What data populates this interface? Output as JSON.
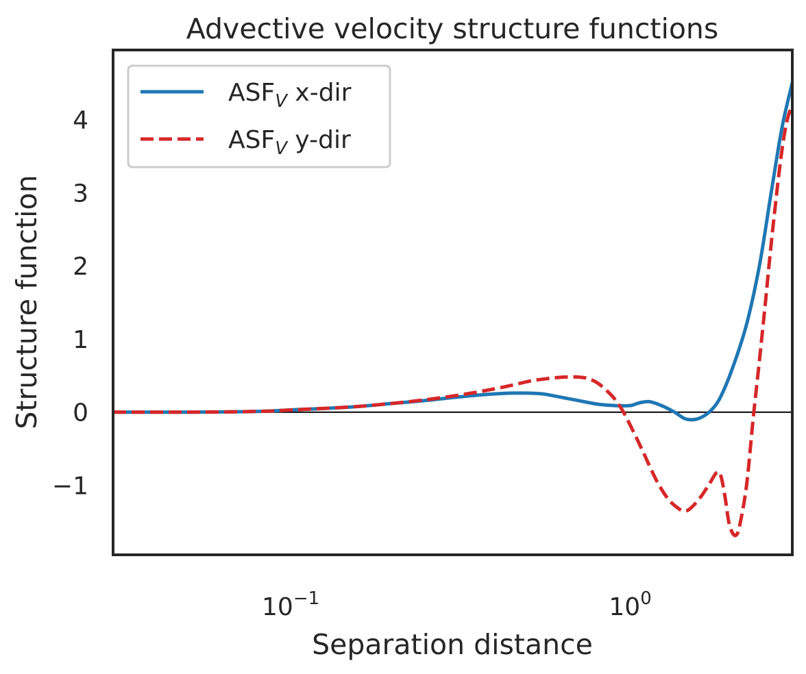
{
  "chart_data": {
    "type": "line",
    "title": "Advective velocity structure functions",
    "xlabel": "Separation distance",
    "ylabel": "Structure function",
    "xscale": "log",
    "xlim": [
      0.03,
      3.0
    ],
    "ylim": [
      -1.95,
      4.95
    ],
    "x_ticks": [
      {
        "value": 0.1,
        "base": "10",
        "exp": "−1"
      },
      {
        "value": 1.0,
        "base": "10",
        "exp": "0"
      }
    ],
    "y_ticks": [
      {
        "value": -1,
        "label": "−1"
      },
      {
        "value": 0,
        "label": "0"
      },
      {
        "value": 1,
        "label": "1"
      },
      {
        "value": 2,
        "label": "2"
      },
      {
        "value": 3,
        "label": "3"
      },
      {
        "value": 4,
        "label": "4"
      }
    ],
    "grid": false,
    "zero_line": true,
    "legend_position": "top-left",
    "series": [
      {
        "name": "ASF",
        "name_sub": "V",
        "name_suffix": " x-dir",
        "color": "#1f77b4",
        "style": "solid",
        "x": [
          0.03,
          0.05,
          0.08,
          0.1,
          0.15,
          0.2,
          0.25,
          0.3,
          0.35,
          0.4,
          0.45,
          0.5,
          0.55,
          0.6,
          0.7,
          0.8,
          0.9,
          1.0,
          1.05,
          1.1,
          1.15,
          1.25,
          1.35,
          1.45,
          1.55,
          1.65,
          1.75,
          1.85,
          2.0,
          2.2,
          2.4,
          2.6,
          2.8,
          3.0
        ],
        "y": [
          0.0,
          0.0,
          0.01,
          0.03,
          0.07,
          0.12,
          0.16,
          0.2,
          0.23,
          0.25,
          0.26,
          0.26,
          0.25,
          0.22,
          0.16,
          0.11,
          0.09,
          0.09,
          0.12,
          0.14,
          0.14,
          0.08,
          0.0,
          -0.09,
          -0.1,
          -0.05,
          0.05,
          0.22,
          0.6,
          1.2,
          2.0,
          3.0,
          3.9,
          4.5
        ]
      },
      {
        "name": "ASF",
        "name_sub": "V",
        "name_suffix": " y-dir",
        "color": "#d62728",
        "style": "dashed",
        "x": [
          0.03,
          0.05,
          0.08,
          0.1,
          0.15,
          0.2,
          0.25,
          0.3,
          0.35,
          0.4,
          0.45,
          0.5,
          0.55,
          0.6,
          0.65,
          0.7,
          0.75,
          0.8,
          0.85,
          0.9,
          0.95,
          1.0,
          1.05,
          1.1,
          1.2,
          1.3,
          1.4,
          1.45,
          1.5,
          1.6,
          1.7,
          1.8,
          1.85,
          1.9,
          1.95,
          2.0,
          2.05,
          2.1,
          2.2,
          2.3,
          2.4,
          2.5,
          2.6,
          2.7,
          2.8,
          2.9,
          3.0
        ],
        "y": [
          0.0,
          0.0,
          0.01,
          0.03,
          0.07,
          0.12,
          0.17,
          0.22,
          0.27,
          0.32,
          0.37,
          0.42,
          0.45,
          0.47,
          0.48,
          0.48,
          0.46,
          0.4,
          0.3,
          0.18,
          0.02,
          -0.18,
          -0.38,
          -0.58,
          -0.95,
          -1.2,
          -1.33,
          -1.35,
          -1.32,
          -1.18,
          -1.0,
          -0.82,
          -0.88,
          -1.15,
          -1.5,
          -1.65,
          -1.68,
          -1.55,
          -1.0,
          -0.1,
          0.7,
          1.5,
          2.3,
          3.0,
          3.6,
          4.0,
          4.2
        ]
      }
    ]
  }
}
